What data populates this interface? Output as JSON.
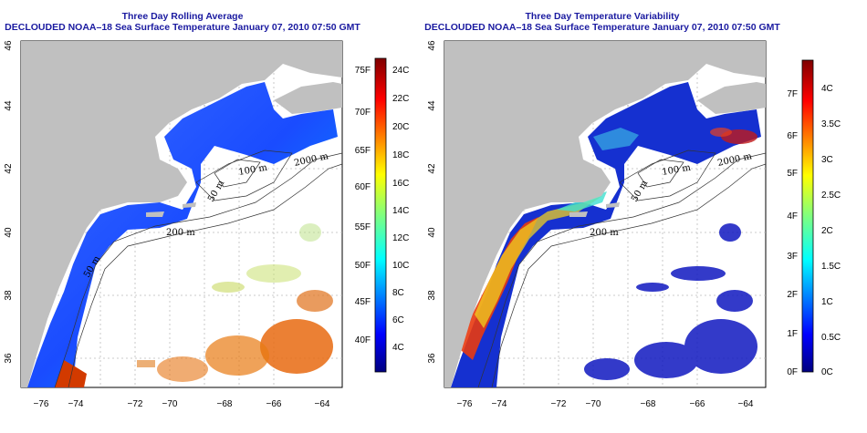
{
  "maps": [
    {
      "id": "left",
      "title_line1": "Three Day Rolling Average",
      "title_line2": "DECLOUDED NOAA–18 Sea Surface Temperature January 07, 2010 07:50 GMT",
      "x_ticks": [
        "−76",
        "−74",
        "−72",
        "−70",
        "−68",
        "−66",
        "−64"
      ],
      "y_ticks": [
        "46",
        "44",
        "42",
        "40",
        "38",
        "36"
      ],
      "colorbar_left_labels": [
        "75F",
        "70F",
        "65F",
        "60F",
        "55F",
        "50F",
        "45F",
        "40F"
      ],
      "colorbar_right_labels": [
        "24C",
        "22C",
        "20C",
        "18C",
        "16C",
        "14C",
        "12C",
        "10C",
        "8C",
        "6C",
        "4C"
      ],
      "contour_labels": [
        "100 m",
        "2000 m",
        "200 m",
        "50 m",
        "50 m"
      ]
    },
    {
      "id": "right",
      "title_line1": "Three Day Temperature Variability",
      "title_line2": "DECLOUDED NOAA–18 Sea Surface Temperature January 07, 2010 07:50 GMT",
      "x_ticks": [
        "−76",
        "−74",
        "−72",
        "−70",
        "−68",
        "−66",
        "−64"
      ],
      "y_ticks": [
        "46",
        "44",
        "42",
        "40",
        "38",
        "36"
      ],
      "colorbar_left_labels": [
        "7F",
        "6F",
        "5F",
        "4F",
        "3F",
        "2F",
        "1F",
        "0F"
      ],
      "colorbar_right_labels": [
        "4C",
        "3.5C",
        "3C",
        "2.5C",
        "2C",
        "1.5C",
        "1C",
        "0.5C",
        "0C"
      ],
      "contour_labels": [
        "100 m",
        "2000 m",
        "200 m",
        "50 m"
      ]
    }
  ],
  "colors": {
    "title": "#1a1aa0",
    "land": "#c0c0c0",
    "ocean_nodata": "#ffffff",
    "colormap": [
      "#00007f",
      "#0000ff",
      "#007fff",
      "#00ffff",
      "#7fff7f",
      "#ffff00",
      "#ff7f00",
      "#ff0000",
      "#7f0000"
    ]
  }
}
